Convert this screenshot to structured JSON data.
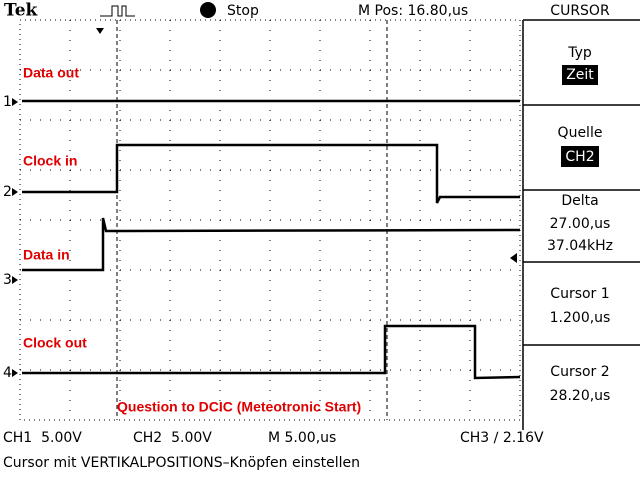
{
  "header": {
    "brand": "Tek",
    "status": "Stop",
    "position": "M Pos: 16.80,us",
    "menu_title": "CURSOR"
  },
  "menu": [
    {
      "label": "Typ",
      "lines": [
        "Zeit"
      ]
    },
    {
      "label": "Quelle",
      "lines": [
        "CH2"
      ]
    },
    {
      "label": "Delta",
      "lines": [
        "27.00,us",
        "37.04kHz"
      ]
    },
    {
      "label": "Cursor 1",
      "lines": [
        "1.200,us"
      ]
    },
    {
      "label": "Cursor 2",
      "lines": [
        "28.20,us"
      ]
    }
  ],
  "channels": [
    {
      "marker": "1",
      "label": "Data out"
    },
    {
      "marker": "2",
      "label": "Clock in"
    },
    {
      "marker": "3",
      "label": "Data in"
    },
    {
      "marker": "4",
      "label": "Clock out"
    }
  ],
  "annotation": "Question to DCIC (Meteotronic Start)",
  "footer": {
    "ch1": "CH1  5.00V",
    "ch2": "CH2  5.00V",
    "timebase": "M 5.00,us",
    "trigger": "CH3 ∕ 2.16V",
    "hint": "Cursor mit VERTIKALPOSITIONS–Knöpfen einstellen"
  }
}
